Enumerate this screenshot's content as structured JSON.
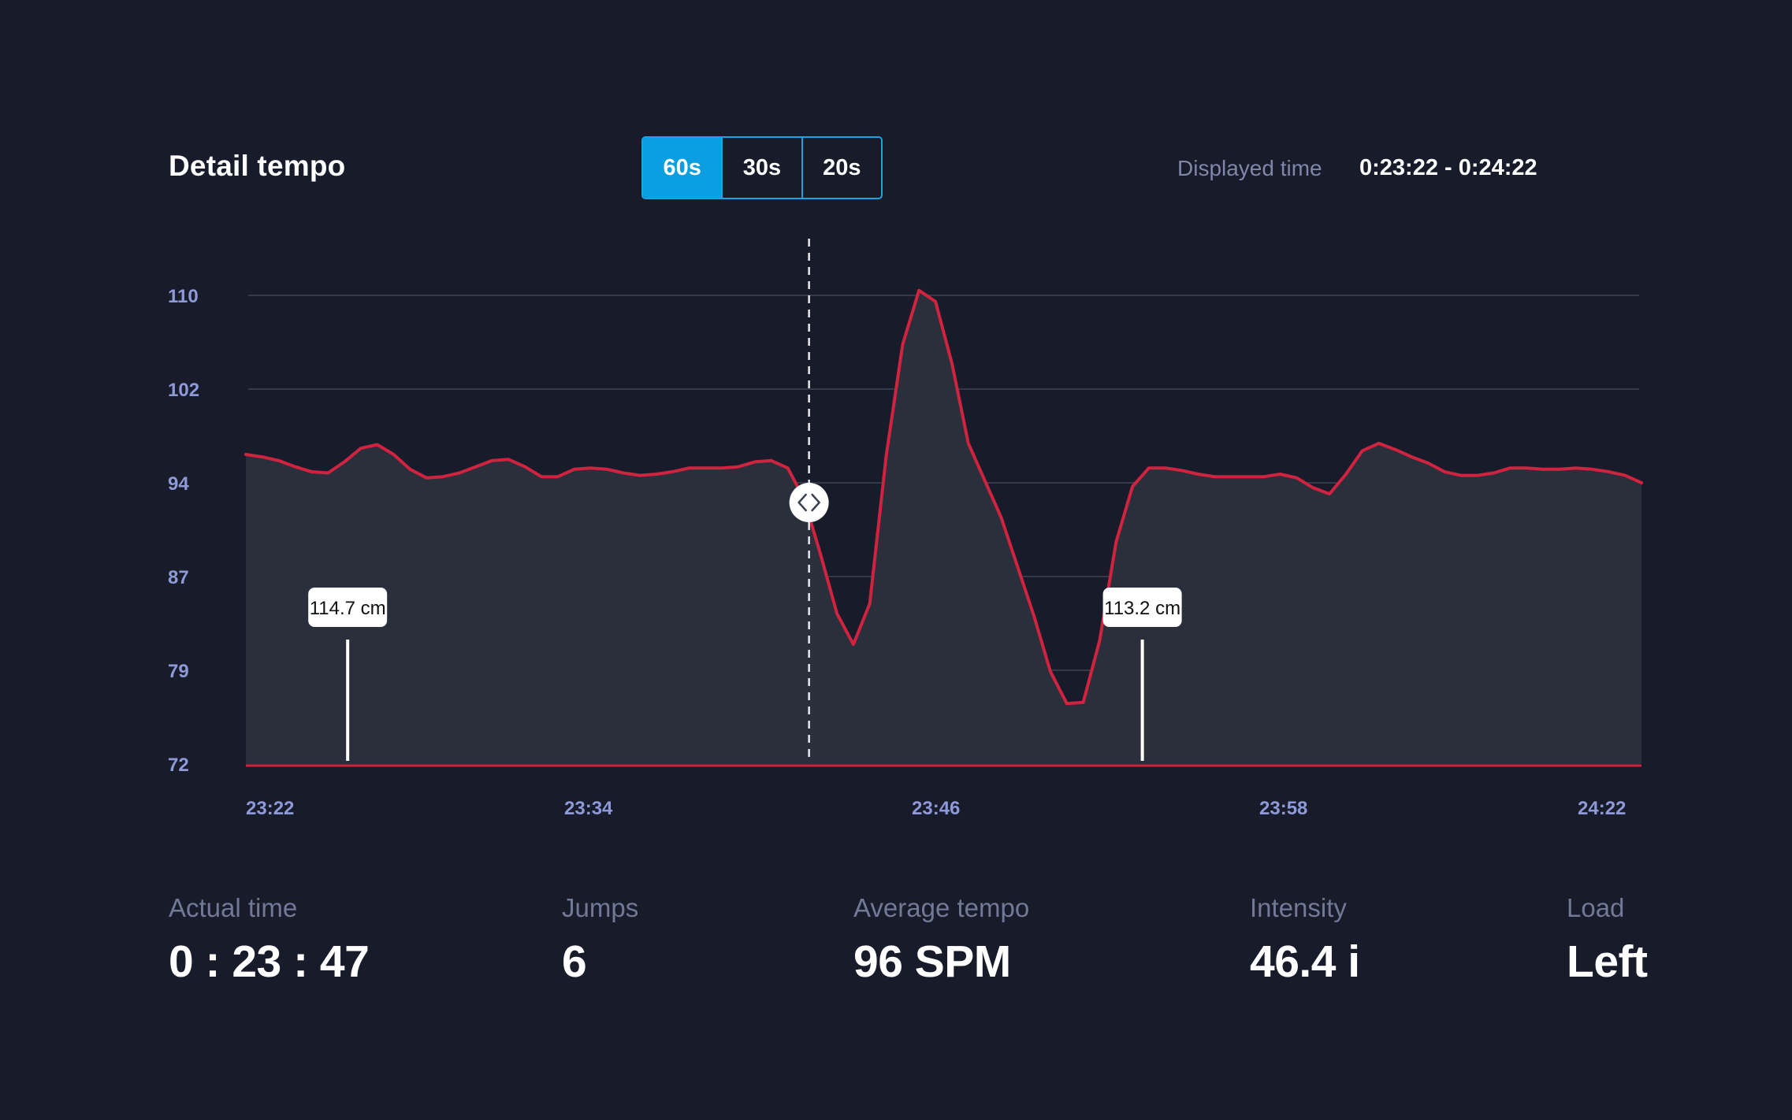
{
  "header": {
    "title": "Detail tempo",
    "range_options": [
      {
        "label": "60s",
        "active": true
      },
      {
        "label": "30s",
        "active": false
      },
      {
        "label": "20s",
        "active": false
      }
    ],
    "displayed_label": "Displayed time",
    "displayed_value": "0:23:22 - 0:24:22"
  },
  "chart_data": {
    "type": "area",
    "title": "",
    "xlabel": "",
    "ylabel": "",
    "x_ticks": [
      "23:22",
      "23:34",
      "23:46",
      "23:58",
      "24:22"
    ],
    "y_ticks": [
      110,
      102,
      94,
      87,
      79,
      72
    ],
    "ylim": [
      72,
      110
    ],
    "grid": true,
    "line_color": "#d0233f",
    "fill_color": "#29303c",
    "series": [
      {
        "values": [
          [
            0,
            97.1
          ],
          [
            1,
            96.9
          ],
          [
            2,
            96.6
          ],
          [
            3,
            96.1
          ],
          [
            4,
            95.7
          ],
          [
            5,
            95.6
          ],
          [
            6,
            96.5
          ],
          [
            7,
            97.6
          ],
          [
            8,
            97.9
          ],
          [
            9,
            97.1
          ],
          [
            10,
            95.9
          ],
          [
            11,
            95.2
          ],
          [
            12,
            95.3
          ],
          [
            13,
            95.6
          ],
          [
            14,
            96.1
          ],
          [
            15,
            96.6
          ],
          [
            16,
            96.7
          ],
          [
            17,
            96.1
          ],
          [
            18,
            95.3
          ],
          [
            19,
            95.3
          ],
          [
            20,
            95.9
          ],
          [
            21,
            96.0
          ],
          [
            22,
            95.9
          ],
          [
            23,
            95.6
          ],
          [
            24,
            95.4
          ],
          [
            25,
            95.5
          ],
          [
            26,
            95.7
          ],
          [
            27,
            96.0
          ],
          [
            28,
            96.0
          ],
          [
            29,
            96.0
          ],
          [
            30,
            96.1
          ],
          [
            31,
            96.5
          ],
          [
            32,
            96.6
          ],
          [
            33,
            96.0
          ],
          [
            34,
            93.5
          ],
          [
            35,
            89.0
          ],
          [
            36,
            84.2
          ],
          [
            37,
            81.7
          ],
          [
            38,
            85.0
          ],
          [
            39,
            97.0
          ],
          [
            40,
            106.0
          ],
          [
            41,
            110.4
          ],
          [
            42,
            109.5
          ],
          [
            43,
            104.5
          ],
          [
            44,
            98.0
          ],
          [
            45,
            95.0
          ],
          [
            46,
            92.0
          ],
          [
            47,
            88.0
          ],
          [
            48,
            84.0
          ],
          [
            49,
            79.5
          ],
          [
            50,
            76.9
          ],
          [
            51,
            77.0
          ],
          [
            52,
            82.0
          ],
          [
            53,
            90.0
          ],
          [
            54,
            94.5
          ],
          [
            55,
            96.0
          ],
          [
            56,
            96.0
          ],
          [
            57,
            95.8
          ],
          [
            58,
            95.5
          ],
          [
            59,
            95.3
          ],
          [
            60,
            95.3
          ],
          [
            61,
            95.3
          ],
          [
            62,
            95.3
          ],
          [
            63,
            95.5
          ],
          [
            64,
            95.2
          ],
          [
            65,
            94.4
          ],
          [
            66,
            93.9
          ],
          [
            67,
            95.5
          ],
          [
            68,
            97.4
          ],
          [
            69,
            98.0
          ],
          [
            70,
            97.5
          ],
          [
            71,
            96.9
          ],
          [
            72,
            96.4
          ],
          [
            73,
            95.7
          ],
          [
            74,
            95.4
          ],
          [
            75,
            95.4
          ],
          [
            76,
            95.6
          ],
          [
            77,
            96.0
          ],
          [
            78,
            96.0
          ],
          [
            79,
            95.9
          ],
          [
            80,
            95.9
          ],
          [
            81,
            96.0
          ],
          [
            82,
            95.9
          ],
          [
            83,
            95.7
          ],
          [
            84,
            95.4
          ],
          [
            85,
            94.8
          ]
        ]
      }
    ],
    "cursor": {
      "x": 34.3
    },
    "annotations": [
      {
        "x": 6.2,
        "label": "114.7 cm"
      },
      {
        "x": 54.6,
        "label": "113.2 cm"
      }
    ]
  },
  "stats": [
    {
      "label": "Actual time",
      "value": "0 : 23 : 47"
    },
    {
      "label": "Jumps",
      "value": "6"
    },
    {
      "label": "Average tempo",
      "value": "96 SPM"
    },
    {
      "label": "Intensity",
      "value": "46.4 i"
    },
    {
      "label": "Load",
      "value": "Left"
    }
  ]
}
